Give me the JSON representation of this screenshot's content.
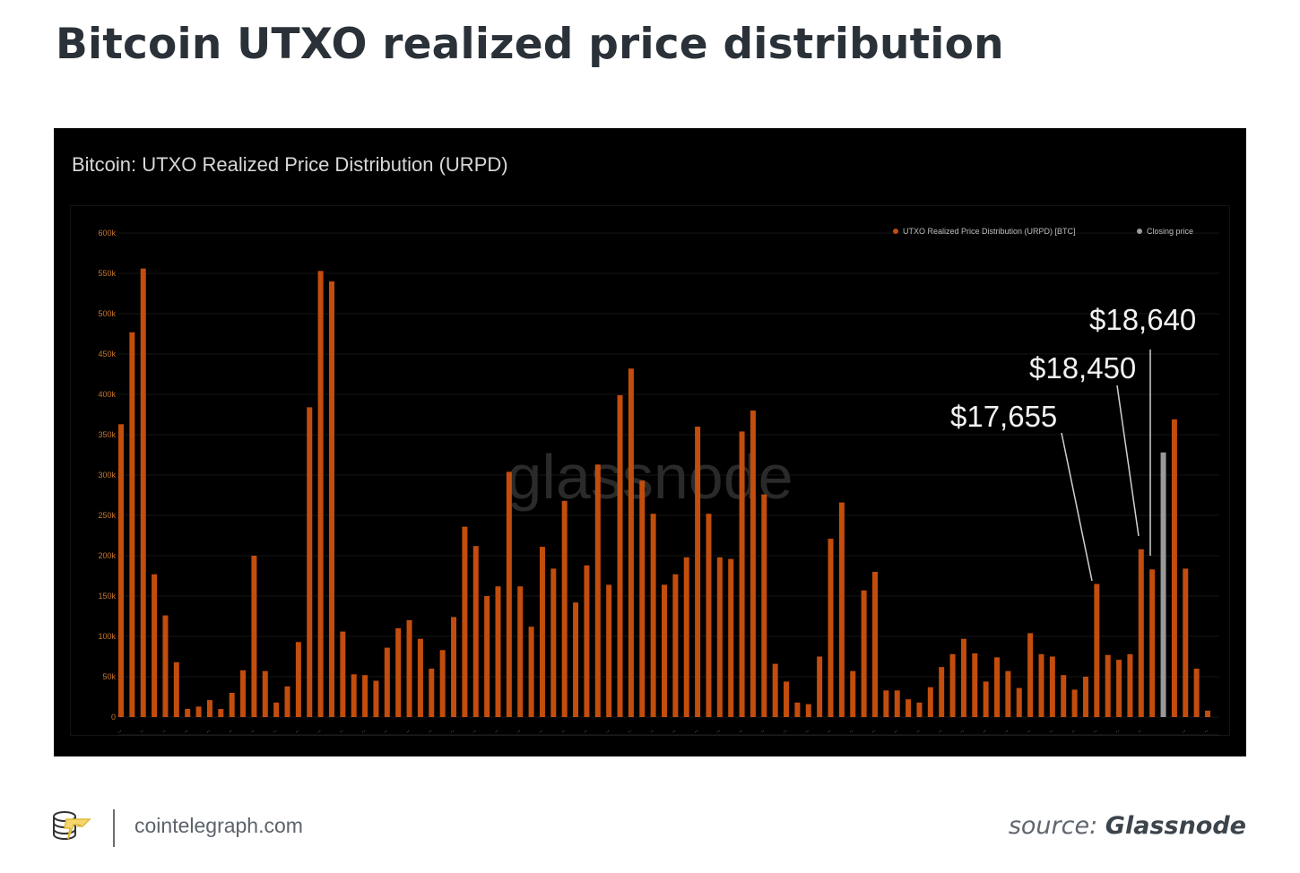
{
  "page": {
    "title": "Bitcoin UTXO realized price distribution",
    "footer": {
      "site": "cointelegraph.com",
      "source_label": "source:",
      "source_name": "Glassnode"
    }
  },
  "colors": {
    "bar": "#c24d0d",
    "closing": "#9a9a9a",
    "axis_text": "#c8762a",
    "annotation": "#f2f2f2"
  },
  "chart_data": {
    "type": "bar",
    "title": "Bitcoin: UTXO Realized Price Distribution (URPD)",
    "watermark": "glassnode",
    "xlabel": "",
    "ylabel": "",
    "ylim": [
      0,
      600000
    ],
    "yticks": [
      0,
      50000,
      100000,
      150000,
      200000,
      250000,
      300000,
      350000,
      400000,
      450000,
      500000,
      550000,
      600000
    ],
    "ytick_labels": [
      "0",
      "50k",
      "100k",
      "150k",
      "200k",
      "250k",
      "300k",
      "350k",
      "400k",
      "450k",
      "500k",
      "550k",
      "600k"
    ],
    "grid": true,
    "legend_position": "top-right",
    "legend": [
      {
        "name": "UTXO Realized Price Distribution (URPD) [BTC]",
        "color": "#c24d0d"
      },
      {
        "name": "Closing price",
        "color": "#9a9a9a"
      }
    ],
    "series": [
      {
        "name": "UTXO Realized Price Distribution (URPD) [BTC]",
        "values": [
          363000,
          477000,
          556000,
          177000,
          126000,
          68000,
          10000,
          13000,
          21000,
          10000,
          30000,
          58000,
          200000,
          57000,
          18000,
          38000,
          93000,
          384000,
          553000,
          540000,
          106000,
          53000,
          52000,
          45000,
          86000,
          110000,
          120000,
          97000,
          60000,
          83000,
          124000,
          236000,
          212000,
          150000,
          162000,
          304000,
          162000,
          112000,
          211000,
          184000,
          268000,
          142000,
          188000,
          313000,
          164000,
          399000,
          432000,
          293000,
          252000,
          164000,
          177000,
          198000,
          360000,
          252000,
          198000,
          196000,
          354000,
          380000,
          276000,
          66000,
          44000,
          18000,
          16000,
          75000,
          221000,
          266000,
          57000,
          157000,
          180000,
          33000,
          33000,
          22000,
          18000,
          37000,
          62000,
          78000,
          97000,
          79000,
          44000,
          74000,
          57000,
          36000,
          104000,
          78000,
          75000,
          52000,
          34000,
          50000,
          165000,
          77000,
          71000,
          78000,
          208000,
          183000,
          null,
          369000,
          184000,
          60000,
          8000
        ]
      },
      {
        "name": "Closing price",
        "index": 94,
        "value": 328000
      }
    ],
    "annotations": [
      {
        "text": "$17,655",
        "bar_index": 88
      },
      {
        "text": "$18,450",
        "bar_index": 92
      },
      {
        "text": "$18,640",
        "bar_index": 93
      }
    ]
  }
}
